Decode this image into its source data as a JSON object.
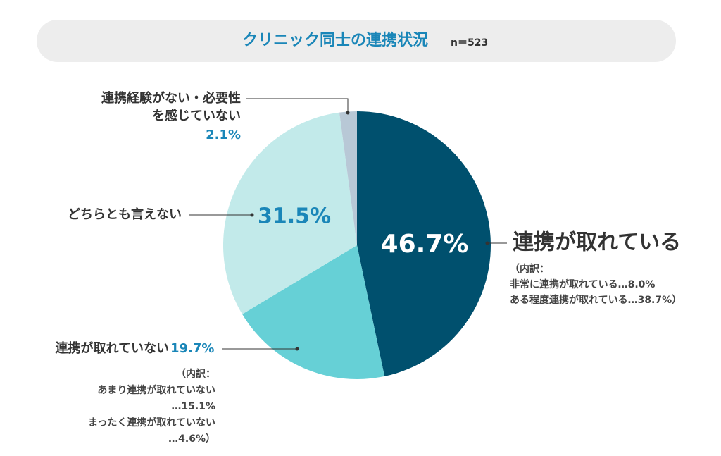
{
  "chart_data": {
    "type": "pie",
    "title": "クリニック同士の連携状況",
    "subtitle": "n＝523",
    "categories": [
      [
        "連携が取れている"
      ],
      [
        "連携が取れていない"
      ],
      [
        "どちらとも言えない"
      ],
      [
        "連携経験がない・必要性",
        "を感じていない"
      ]
    ],
    "values": [
      46.7,
      19.7,
      31.5,
      2.1
    ],
    "value_labels": [
      "46.7%",
      "19.7%",
      "31.5%",
      "2.1%"
    ],
    "colors": [
      "#00506e",
      "#66d0d6",
      "#c2eaea",
      "#b8c8d6"
    ],
    "breakdowns": [
      [
        "（内訳：",
        "非常に連携が取れている…8.0%",
        "ある程度連携が取れている…38.7%）"
      ],
      [
        "（内訳：",
        "あまり連携が取れていない",
        "…15.1%",
        "まったく連携が取れていない",
        "…4.6%）"
      ]
    ]
  }
}
